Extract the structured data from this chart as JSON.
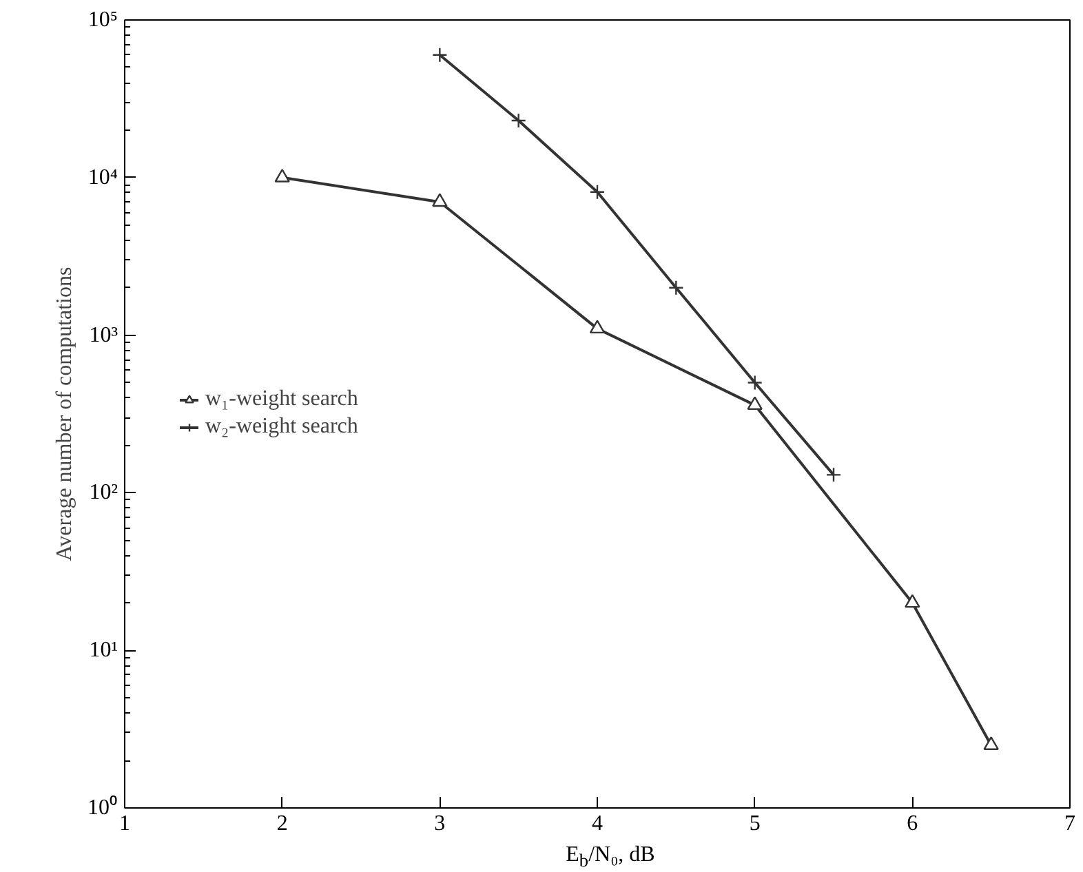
{
  "chart_data": {
    "type": "line",
    "xlabel": "E$_{b}$/N₀, dB",
    "ylabel": "Average number of computations",
    "log": "y",
    "grid": false,
    "legend": "left",
    "xlim": [
      1,
      7
    ],
    "xticks": [
      1,
      2,
      3,
      4,
      5,
      6,
      7
    ],
    "ylim": [
      1,
      100000
    ],
    "yticks": [
      {
        "value": 1,
        "label": "10⁰"
      },
      {
        "value": 10,
        "label": "10¹"
      },
      {
        "value": 100,
        "label": "10²"
      },
      {
        "value": 1000,
        "label": "10³"
      },
      {
        "value": 10000,
        "label": "10⁴"
      },
      {
        "value": 100000,
        "label": "10⁵"
      }
    ],
    "series": [
      {
        "name": "w₁-weight search",
        "color": "#333333",
        "marker": "triangle",
        "x": [
          2,
          3,
          4,
          5,
          6,
          6.5
        ],
        "values": [
          10000,
          7000,
          1100,
          360,
          20,
          2.5
        ]
      },
      {
        "name": "w₂-weight search",
        "color": "#333333",
        "marker": "cross",
        "x": [
          3,
          3.5,
          4,
          4.5,
          5,
          5.5
        ],
        "values": [
          60000,
          23000,
          8100,
          2000,
          500,
          130
        ]
      }
    ]
  }
}
